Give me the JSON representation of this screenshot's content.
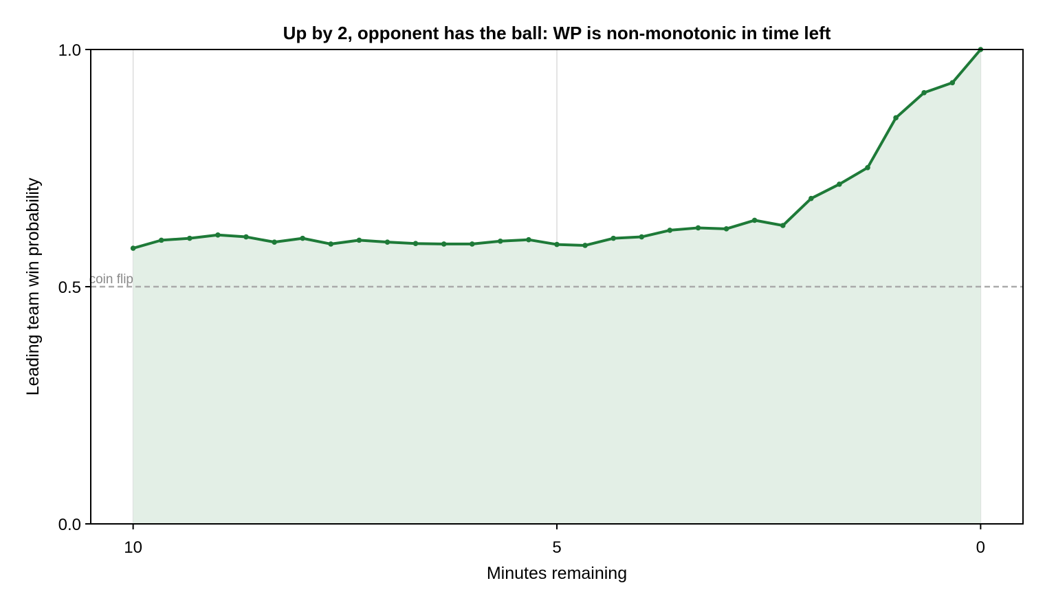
{
  "chart_data": {
    "type": "line",
    "title": "Up by 2, opponent has the ball: WP is non-monotonic in time left",
    "xlabel": "Minutes remaining",
    "ylabel": "Leading team win probability",
    "xlim": [
      10.5,
      -0.5
    ],
    "ylim": [
      0.0,
      1.0
    ],
    "x_reversed": true,
    "xticks": [
      10,
      5,
      0
    ],
    "xtick_labels": [
      "10",
      "5",
      "0"
    ],
    "yticks": [
      0.0,
      0.5,
      1.0
    ],
    "ytick_labels": [
      "0.0",
      "0.5",
      "1.0"
    ],
    "grid": "vertical",
    "reference_line": {
      "y": 0.5,
      "label": "coin flip",
      "style": "dashed"
    },
    "series": [
      {
        "x": [
          10.0,
          9.667,
          9.333,
          9.0,
          8.667,
          8.333,
          8.0,
          7.667,
          7.333,
          7.0,
          6.667,
          6.333,
          6.0,
          5.667,
          5.333,
          5.0,
          4.667,
          4.333,
          4.0,
          3.667,
          3.333,
          3.0,
          2.667,
          2.333,
          2.0,
          1.667,
          1.333,
          1.0,
          0.667,
          0.333,
          0.0
        ],
        "y": [
          0.581,
          0.598,
          0.602,
          0.609,
          0.605,
          0.594,
          0.602,
          0.59,
          0.598,
          0.594,
          0.591,
          0.59,
          0.59,
          0.596,
          0.599,
          0.589,
          0.587,
          0.602,
          0.605,
          0.619,
          0.624,
          0.622,
          0.64,
          0.629,
          0.686,
          0.716,
          0.751,
          0.856,
          0.909,
          0.93,
          1.0
        ]
      }
    ]
  },
  "colors": {
    "line": "#1e7a38",
    "fill": "#e3efe6",
    "reference": "#aaaaaa",
    "grid": "#dcdcdc",
    "axis": "#000000"
  }
}
